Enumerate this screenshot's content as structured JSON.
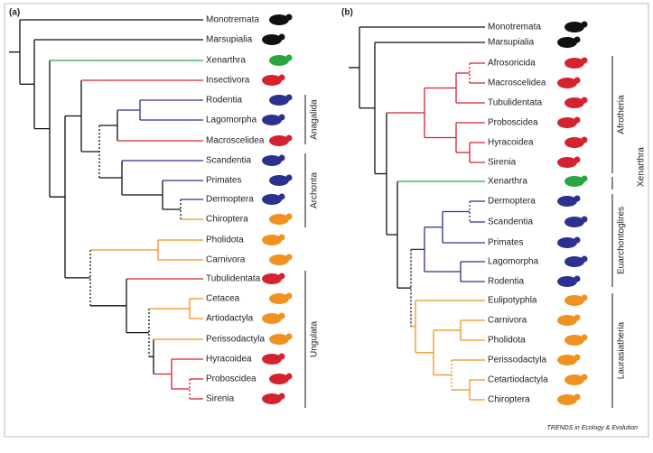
{
  "panels": [
    {
      "label": "(a)",
      "taxa": [
        "Monotremata",
        "Marsupialia",
        "Xenarthra",
        "Insectivora",
        "Rodentia",
        "Lagomorpha",
        "Macroscelidea",
        "Scandentia",
        "Primates",
        "Dermoptera",
        "Chiroptera",
        "Pholidota",
        "Carnivora",
        "Tubulidentata",
        "Cetacea",
        "Artiodactyla",
        "Perissodactyla",
        "Hyracoidea",
        "Proboscidea",
        "Sirenia"
      ],
      "clades": [
        "Anagalida",
        "Archonta",
        "Ungulata"
      ]
    },
    {
      "label": "(b)",
      "taxa": [
        "Monotremata",
        "Marsupialia",
        "Afrosoricida",
        "Macroscelidea",
        "Tubulidentata",
        "Proboscidea",
        "Hyracoidea",
        "Sirenia",
        "Xenarthra",
        "Dermoptera",
        "Scandentia",
        "Primates",
        "Lagomorpha",
        "Rodentia",
        "Eulipotyphla",
        "Carnivora",
        "Pholidota",
        "Perissodactyla",
        "Cetartiodactyla",
        "Chiroptera"
      ],
      "clades": [
        "Afrotheria",
        "Xenarthra",
        "Euarchontoglires",
        "Laurasiatheria"
      ]
    }
  ],
  "footer": "TRENDS in Ecology & Evolution"
}
